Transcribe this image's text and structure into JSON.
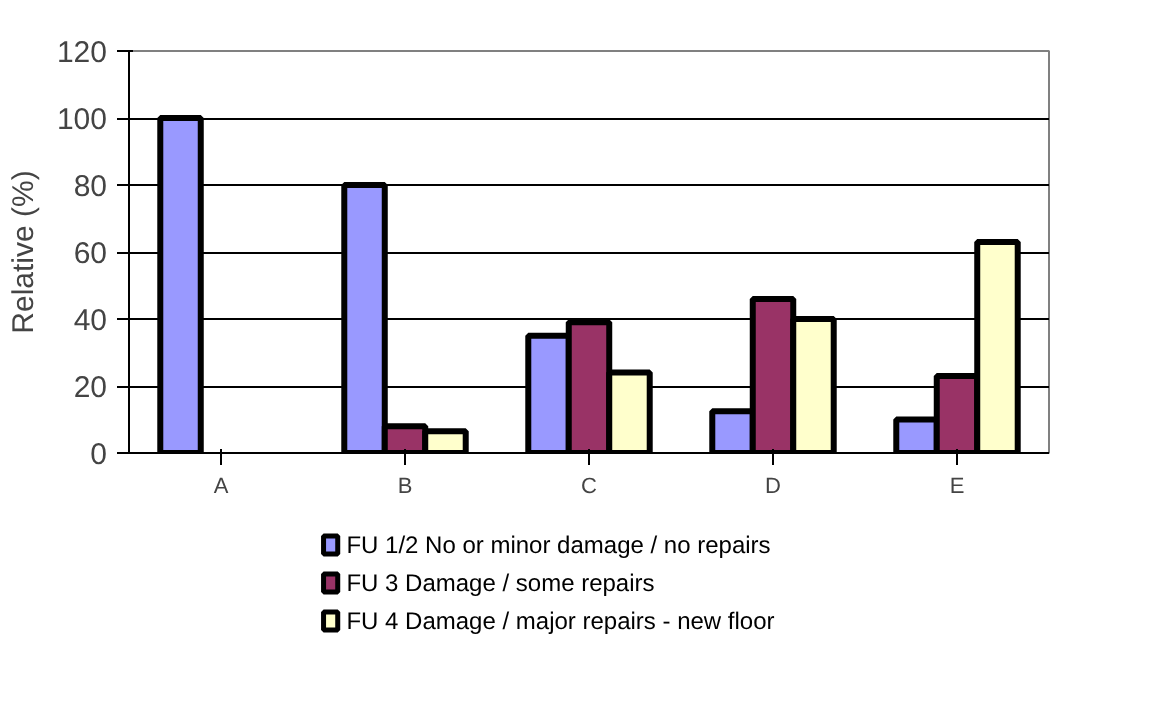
{
  "chart_data": {
    "type": "bar",
    "ylabel": "Relative (%)",
    "categories": [
      "A",
      "B",
      "C",
      "D",
      "E"
    ],
    "series": [
      {
        "name": "FU 1/2 No or minor damage / no repairs",
        "color": "#9999ff",
        "values": [
          100,
          80,
          35,
          12.5,
          10
        ]
      },
      {
        "name": "FU 3 Damage / some repairs",
        "color": "#993366",
        "values": [
          null,
          8,
          39,
          46,
          23
        ]
      },
      {
        "name": "FU 4 Damage / major repairs - new floor",
        "color": "#ffffcc",
        "values": [
          null,
          6.5,
          24,
          40,
          63
        ]
      }
    ],
    "ylim": [
      0,
      120
    ],
    "yticks": [
      0,
      20,
      40,
      60,
      80,
      100,
      120
    ],
    "grid": "y",
    "legend": "bottom"
  }
}
